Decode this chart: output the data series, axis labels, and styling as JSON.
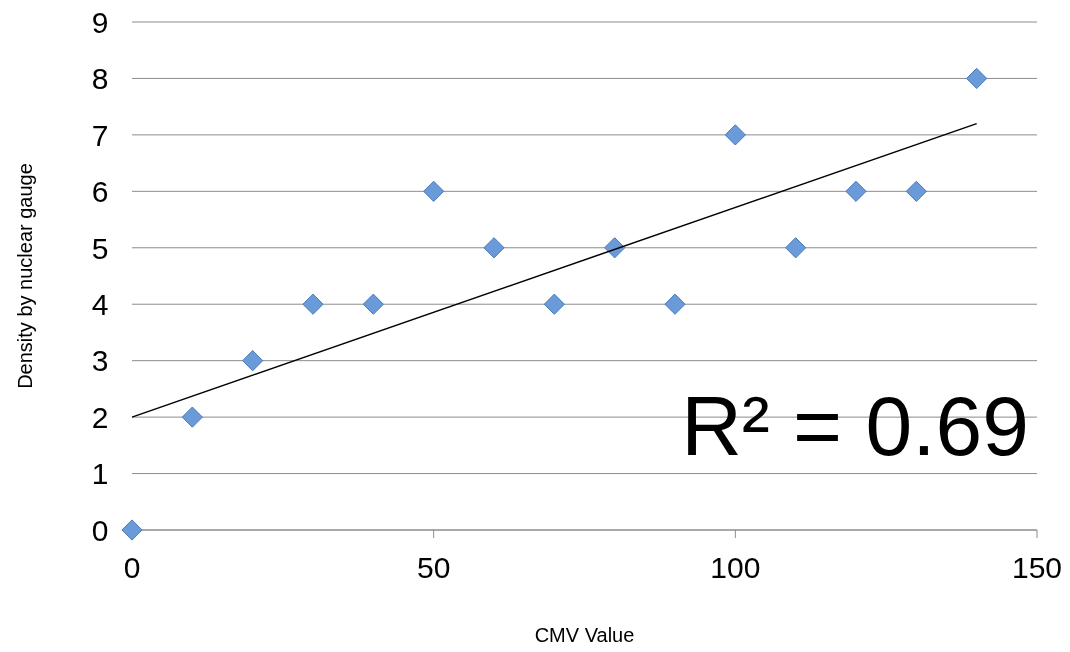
{
  "chart_data": {
    "type": "scatter",
    "xlabel": "CMV Value",
    "ylabel": "Density by nuclear gauge",
    "xlim": [
      0,
      150
    ],
    "xticks": [
      0,
      50,
      100,
      150
    ],
    "ylim": [
      0,
      9
    ],
    "yticks": [
      0,
      1,
      2,
      3,
      4,
      5,
      6,
      7,
      8,
      9
    ],
    "grid": "y",
    "marker": "diamond",
    "annotations": [
      "R² = 0.69"
    ],
    "series": [
      {
        "color": "#6a9bd8",
        "x": [
          0,
          10,
          20,
          30,
          40,
          50,
          60,
          70,
          80,
          90,
          100,
          110,
          120,
          130,
          140
        ],
        "values": [
          0,
          2,
          3,
          4,
          4,
          6,
          5,
          4,
          5,
          4,
          7,
          5,
          6,
          6,
          8
        ]
      },
      {
        "type": "line",
        "color": "#000000",
        "marker": "none",
        "x": [
          0,
          140
        ],
        "values": [
          2,
          7.2
        ]
      }
    ]
  }
}
